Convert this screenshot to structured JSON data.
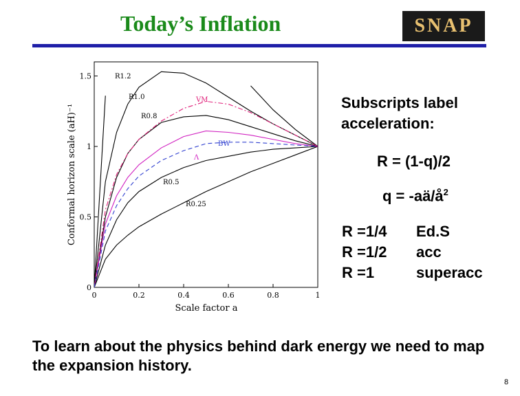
{
  "header": {
    "title": "Today’s Inflation",
    "logo": "SNAP"
  },
  "chart_data": {
    "type": "line",
    "xlabel": "Scale factor a",
    "ylabel": "Conformal horizon scale (aH)⁻¹",
    "xlim": [
      0,
      1
    ],
    "ylim": [
      0,
      1.6
    ],
    "xticks": [
      0,
      0.2,
      0.4,
      0.6,
      0.8,
      1
    ],
    "yticks": [
      0,
      0.5,
      1,
      1.5
    ],
    "x": [
      0,
      0.05,
      0.1,
      0.15,
      0.2,
      0.3,
      0.4,
      0.5,
      0.6,
      0.7,
      0.8,
      0.9,
      1
    ],
    "series": [
      {
        "name": "R1.2",
        "color": "#000000",
        "style": "solid",
        "values": [
          0,
          1.36,
          null,
          null,
          null,
          null,
          null,
          null,
          null,
          1.43,
          1.26,
          1.12,
          1
        ]
      },
      {
        "name": "R1.0",
        "color": "#000000",
        "style": "solid",
        "values": [
          0,
          0.75,
          1.1,
          1.3,
          1.42,
          1.53,
          1.52,
          1.45,
          1.35,
          1.25,
          1.16,
          1.08,
          1
        ]
      },
      {
        "name": "R0.8",
        "color": "#000000",
        "style": "solid",
        "values": [
          0,
          0.5,
          0.78,
          0.95,
          1.05,
          1.17,
          1.21,
          1.22,
          1.19,
          1.14,
          1.09,
          1.04,
          1
        ]
      },
      {
        "name": "R0.5",
        "color": "#000000",
        "style": "solid",
        "values": [
          0,
          0.3,
          0.48,
          0.6,
          0.68,
          0.78,
          0.85,
          0.9,
          0.93,
          0.96,
          0.98,
          0.99,
          1
        ]
      },
      {
        "name": "R0.25",
        "color": "#000000",
        "style": "solid",
        "values": [
          0,
          0.2,
          0.3,
          0.37,
          0.43,
          0.52,
          0.6,
          0.68,
          0.75,
          0.82,
          0.88,
          0.94,
          1
        ]
      },
      {
        "name": "VM",
        "color": "#e0207a",
        "style": "dashdot",
        "values": [
          0,
          0.55,
          0.8,
          0.95,
          1.05,
          1.18,
          1.27,
          1.32,
          1.3,
          1.24,
          1.16,
          1.08,
          1
        ]
      },
      {
        "name": "Λ",
        "color": "#d020c0",
        "style": "solid",
        "values": [
          0,
          0.45,
          0.65,
          0.78,
          0.87,
          0.99,
          1.07,
          1.11,
          1.1,
          1.08,
          1.05,
          1.02,
          1
        ]
      },
      {
        "name": "BW",
        "color": "#3040d0",
        "style": "dashed",
        "values": [
          0,
          0.4,
          0.58,
          0.7,
          0.79,
          0.9,
          0.97,
          1.02,
          1.03,
          1.03,
          1.02,
          1.01,
          1
        ]
      }
    ]
  },
  "side": {
    "heading": "Subscripts label acceleration:",
    "r_formula": "R = (1-q)/2",
    "q_formula": {
      "text": "q = -aä/å",
      "sup": "2"
    },
    "rows": [
      [
        "R =1/4",
        "Ed.S"
      ],
      [
        "R =1/2",
        "acc"
      ],
      [
        "R =1",
        "superacc"
      ]
    ]
  },
  "footer": {
    "text": "To learn about the physics behind dark energy we need to map the expansion history.",
    "page": "8"
  }
}
